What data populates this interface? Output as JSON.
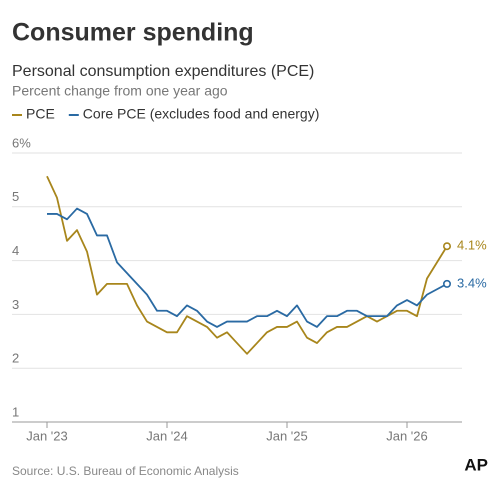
{
  "chart_data": {
    "type": "line",
    "title": "Consumer spending",
    "subtitle": "Personal consumption expenditures (PCE)",
    "y_label": "Percent change from one year ago",
    "source": "Source: U.S. Bureau of Economic Analysis",
    "logo": "AP",
    "categories": [
      "Jan '23",
      null,
      null,
      null,
      null,
      null,
      null,
      null,
      null,
      null,
      null,
      null,
      "Jan '24",
      null,
      null,
      null,
      null,
      null,
      null,
      null,
      null,
      null,
      null,
      null,
      "Jan '25",
      null,
      null,
      null,
      null,
      null,
      null,
      null,
      null,
      null,
      null,
      null,
      "Jan '26",
      null,
      null,
      null,
      null
    ],
    "series": [
      {
        "name": "PCE",
        "color": "#a8861c",
        "values": [
          5.4,
          5.0,
          4.2,
          4.4,
          4.0,
          3.2,
          3.4,
          3.4,
          3.4,
          3.0,
          2.7,
          2.6,
          2.5,
          2.5,
          2.8,
          2.7,
          2.6,
          2.4,
          2.5,
          2.3,
          2.1,
          2.3,
          2.5,
          2.6,
          2.6,
          2.7,
          2.4,
          2.3,
          2.5,
          2.6,
          2.6,
          2.7,
          2.8,
          2.7,
          2.8,
          2.9,
          2.9,
          2.8,
          3.5,
          3.8,
          4.1
        ],
        "value_labels": [
          null,
          null,
          null,
          null,
          null,
          null,
          null,
          null,
          null,
          null,
          null,
          null,
          null,
          null,
          null,
          null,
          null,
          null,
          null,
          null,
          null,
          null,
          null,
          null,
          null,
          null,
          null,
          null,
          null,
          null,
          null,
          null,
          null,
          null,
          null,
          null,
          null,
          null,
          null,
          null,
          "4.1%"
        ]
      },
      {
        "name": "Core PCE (excludes food and energy)",
        "color": "#2a6aa3",
        "values": [
          4.7,
          4.7,
          4.6,
          4.8,
          4.7,
          4.3,
          4.3,
          3.8,
          3.6,
          3.4,
          3.2,
          2.9,
          2.9,
          2.8,
          3.0,
          2.9,
          2.7,
          2.6,
          2.7,
          2.7,
          2.7,
          2.8,
          2.8,
          2.9,
          2.8,
          3.0,
          2.7,
          2.6,
          2.8,
          2.8,
          2.9,
          2.9,
          2.8,
          2.8,
          2.8,
          3.0,
          3.1,
          3.0,
          3.2,
          3.3,
          3.4
        ],
        "value_labels": [
          null,
          null,
          null,
          null,
          null,
          null,
          null,
          null,
          null,
          null,
          null,
          null,
          null,
          null,
          null,
          null,
          null,
          null,
          null,
          null,
          null,
          null,
          null,
          null,
          null,
          null,
          null,
          null,
          null,
          null,
          null,
          null,
          null,
          null,
          null,
          null,
          null,
          null,
          null,
          null,
          "3.4%"
        ]
      }
    ],
    "ylim": [
      1,
      6
    ],
    "yticks": [
      1,
      2,
      3,
      4,
      5,
      {
        "value": 6,
        "label": "6%"
      }
    ],
    "grid": true
  }
}
